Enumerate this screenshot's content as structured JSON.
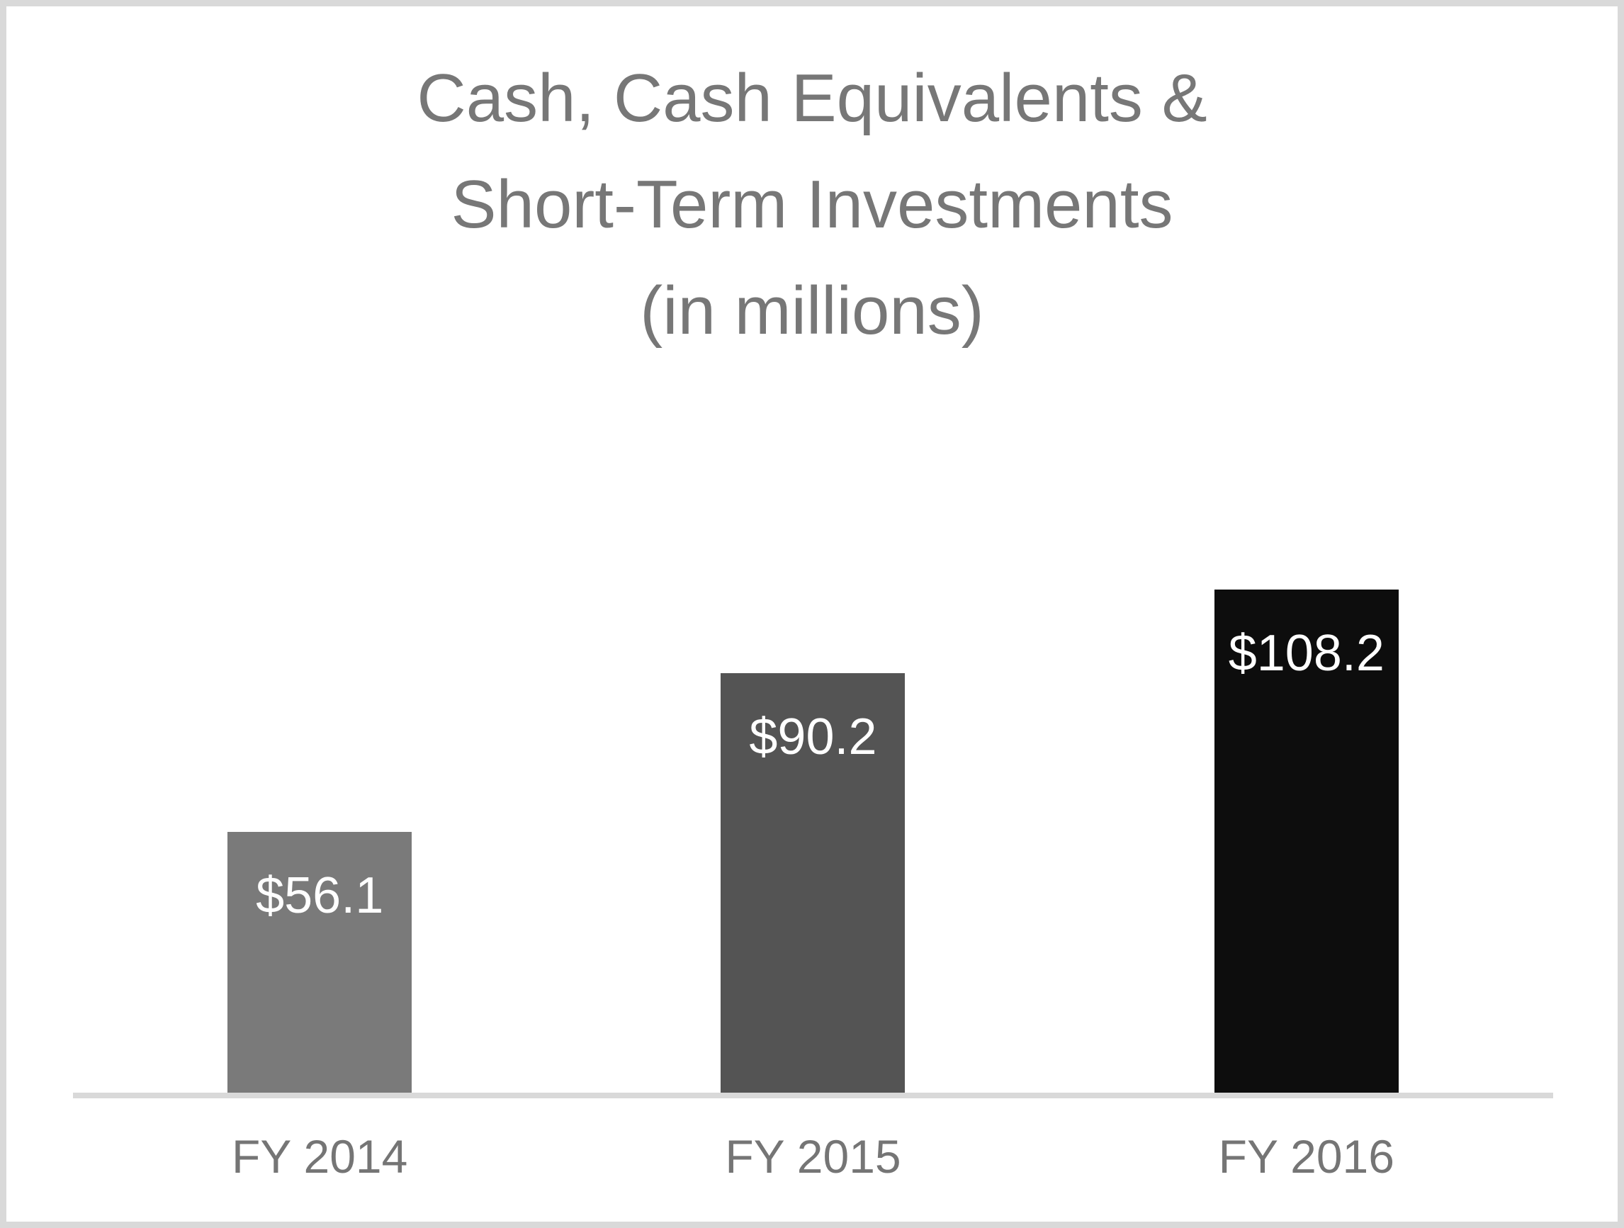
{
  "chart_data": {
    "type": "bar",
    "title": "Cash, Cash Equivalents & Short-Term Investments (in millions)",
    "title_lines": [
      "Cash, Cash Equivalents &",
      "Short-Term Investments",
      "(in millions)"
    ],
    "categories": [
      "FY 2014",
      "FY 2015",
      "FY 2016"
    ],
    "values": [
      56.1,
      90.2,
      108.2
    ],
    "value_labels": [
      "$56.1",
      "$90.2",
      "$108.2"
    ],
    "ylabel": "",
    "xlabel": "",
    "ylim": [
      0,
      108.2
    ],
    "grid": false,
    "legend_position": "none",
    "bar_colors": [
      "#7a7a7a",
      "#545454",
      "#0d0d0d"
    ],
    "value_label_color": "#ffffff",
    "title_color": "#777777",
    "axis_label_color": "#757575",
    "axis_line_color": "#d9d9d9",
    "frame_border_color": "#d9d9d9"
  }
}
